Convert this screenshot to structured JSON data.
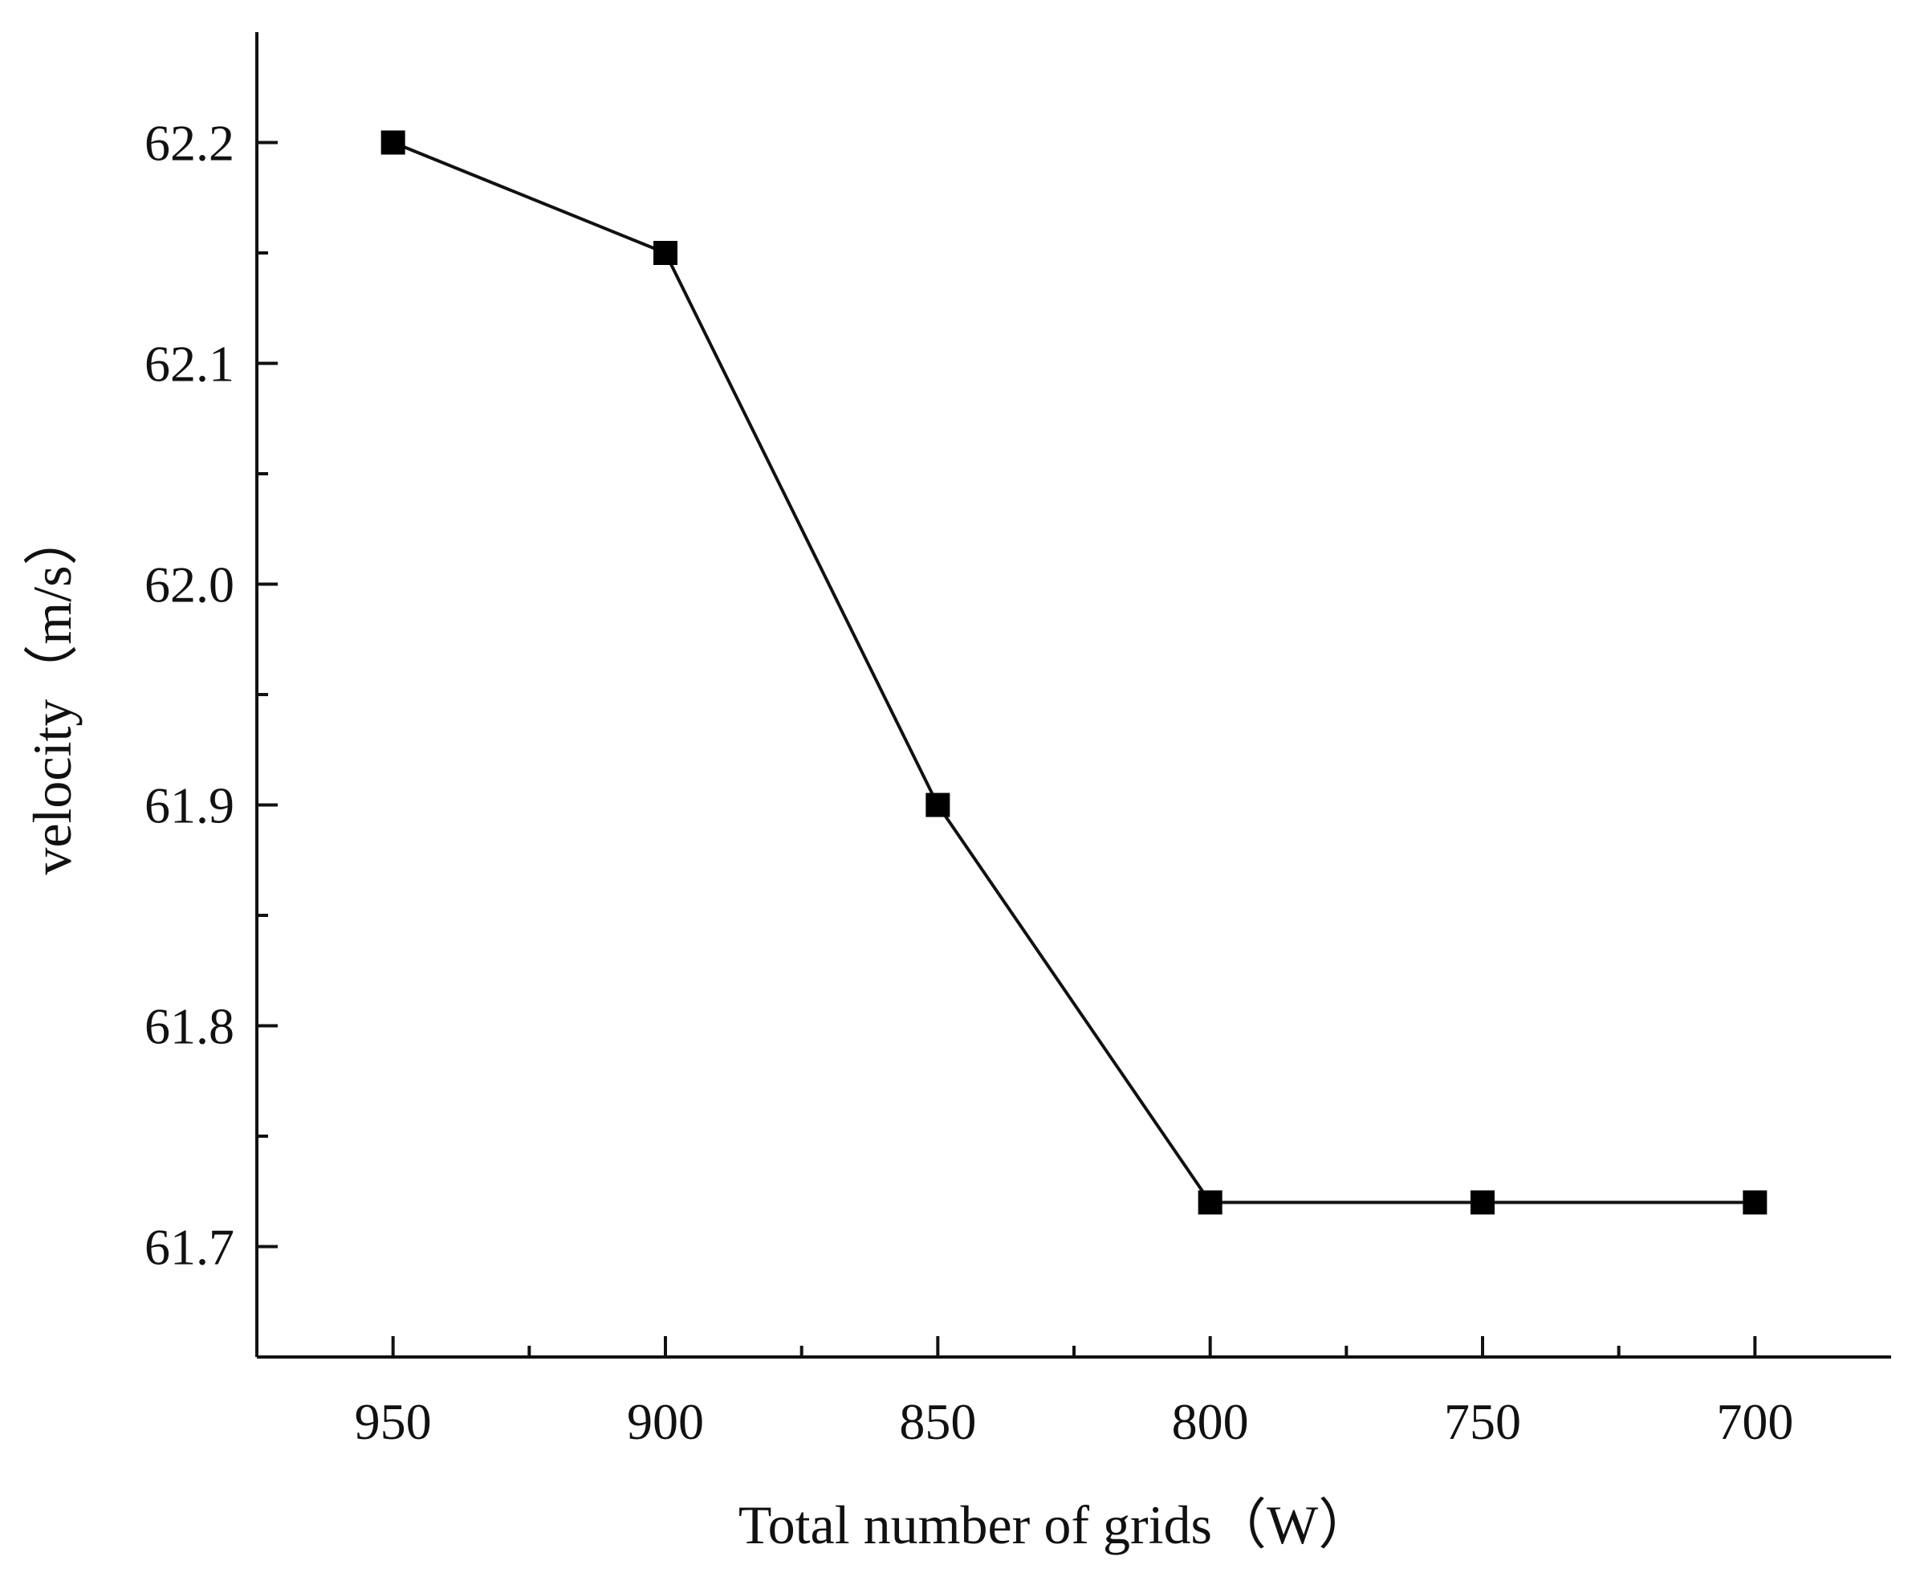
{
  "chart_data": {
    "type": "line",
    "title": "",
    "xlabel": "Total number of grids（W）",
    "ylabel": "velocity（m/s）",
    "x_reversed": true,
    "xlim": [
      975,
      675
    ],
    "ylim": [
      61.65,
      62.25
    ],
    "xticks": [
      950,
      900,
      850,
      800,
      750,
      700
    ],
    "x_minor_ticks": [
      925,
      875,
      825,
      775,
      725
    ],
    "yticks": [
      61.7,
      61.8,
      61.9,
      62.0,
      62.1,
      62.2
    ],
    "ytick_labels": [
      "61.7",
      "61.8",
      "61.9",
      "62.0",
      "62.1",
      "62.2"
    ],
    "y_minor_ticks": [
      61.75,
      61.85,
      61.95,
      62.05,
      62.15
    ],
    "grid": false,
    "legend": "none",
    "marker": "square",
    "line_color": "#000000",
    "series": [
      {
        "x": [
          950,
          900,
          850,
          800,
          750,
          700
        ],
        "y": [
          62.2,
          62.15,
          61.9,
          61.72,
          61.72,
          61.72
        ]
      }
    ]
  }
}
